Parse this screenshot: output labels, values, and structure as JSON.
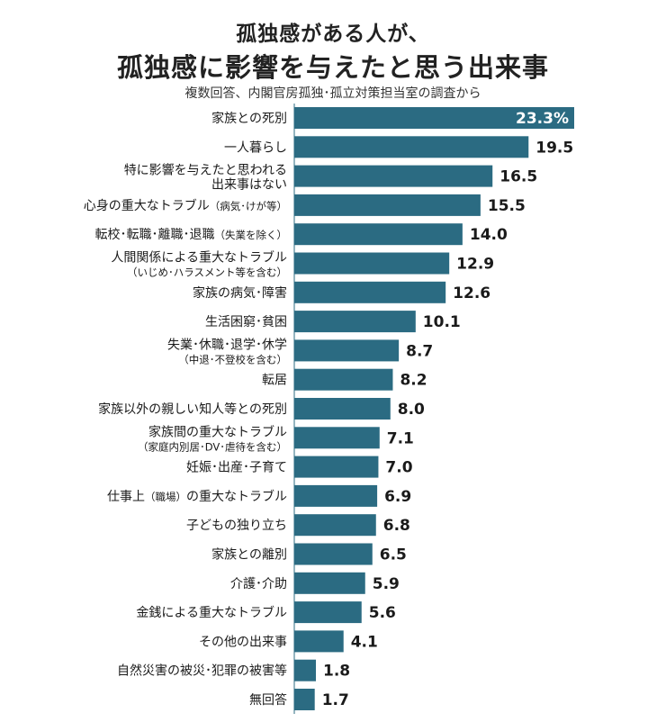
{
  "header": {
    "title_line1": "孤独感がある人が、",
    "title_line2": "孤独感に影響を与えたと思う出来事",
    "subtitle": "複数回答、内閣官房孤独･孤立対策担当室の調査から"
  },
  "colors": {
    "bar": "#2b6b82",
    "top_value_text": "#ffffff",
    "value_text": "#1a1a1a"
  },
  "chart_data": {
    "type": "bar",
    "orientation": "horizontal",
    "title": "孤独感に影響を与えたと思う出来事",
    "unit": "%",
    "xlim": [
      0,
      23.3
    ],
    "categories": [
      {
        "main": "家族との死別",
        "sub": ""
      },
      {
        "main": "一人暮らし",
        "sub": ""
      },
      {
        "main": "特に影響を与えたと思われる",
        "sub": "出来事はない",
        "sub_style": "main"
      },
      {
        "main": "心身の重大なトラブル",
        "note": "（病気･けが等）"
      },
      {
        "main": "転校･転職･離職･退職",
        "note": "（失業を除く）"
      },
      {
        "main": "人間関係による重大なトラブル",
        "sub": "（いじめ･ハラスメント等を含む）"
      },
      {
        "main": "家族の病気･障害",
        "sub": ""
      },
      {
        "main": "生活困窮･貧困",
        "sub": ""
      },
      {
        "main": "失業･休職･退学･休学",
        "sub": "（中退･不登校を含む）"
      },
      {
        "main": "転居",
        "sub": ""
      },
      {
        "main": "家族以外の親しい知人等との死別",
        "sub": ""
      },
      {
        "main": "家族間の重大なトラブル",
        "sub": "（家庭内別居･DV･虐待を含む）"
      },
      {
        "main": "妊娠･出産･子育て",
        "sub": ""
      },
      {
        "main": "仕事上",
        "note": "（職場）",
        "tail": "の重大なトラブル"
      },
      {
        "main": "子どもの独り立ち",
        "sub": ""
      },
      {
        "main": "家族との離別",
        "sub": ""
      },
      {
        "main": "介護･介助",
        "sub": ""
      },
      {
        "main": "金銭による重大なトラブル",
        "sub": ""
      },
      {
        "main": "その他の出来事",
        "sub": ""
      },
      {
        "main": "自然災害の被災･犯罪の被害等",
        "sub": ""
      },
      {
        "main": "無回答",
        "sub": ""
      }
    ],
    "values": [
      23.3,
      19.5,
      16.5,
      15.5,
      14.0,
      12.9,
      12.6,
      10.1,
      8.7,
      8.2,
      8.0,
      7.1,
      7.0,
      6.9,
      6.8,
      6.5,
      5.9,
      5.6,
      4.1,
      1.8,
      1.7
    ],
    "value_labels": [
      "23.3%",
      "19.5",
      "16.5",
      "15.5",
      "14.0",
      "12.9",
      "12.6",
      "10.1",
      "8.7",
      "8.2",
      "8.0",
      "7.1",
      "7.0",
      "6.9",
      "6.8",
      "6.5",
      "5.9",
      "5.6",
      "4.1",
      "1.8",
      "1.7"
    ]
  }
}
